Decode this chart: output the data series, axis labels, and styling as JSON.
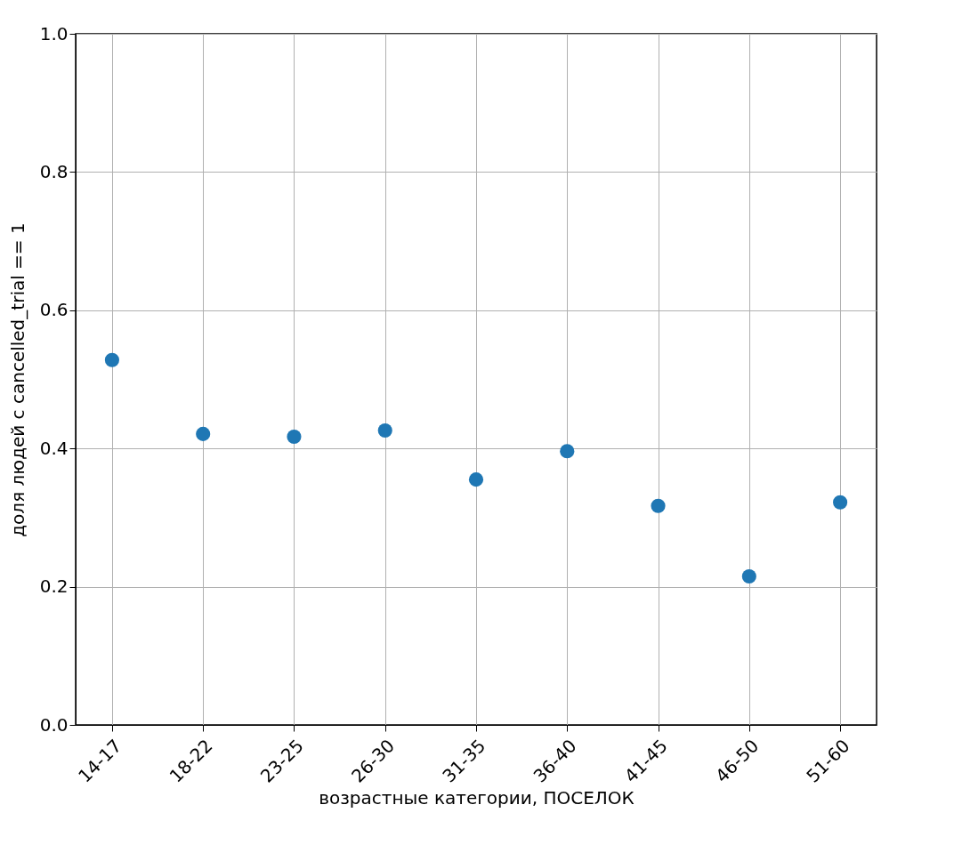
{
  "chart_data": {
    "type": "scatter",
    "xlabel": "возрастные категории, ПОСЕЛОК",
    "ylabel": "доля людей с cancelled_trial == 1",
    "categories": [
      "14-17",
      "18-22",
      "23-25",
      "26-30",
      "31-35",
      "36-40",
      "41-45",
      "46-50",
      "51-60"
    ],
    "series": [
      {
        "color": "#1f77b4",
        "values": [
          0.528,
          0.421,
          0.417,
          0.426,
          0.355,
          0.396,
          0.317,
          0.215,
          0.322
        ]
      }
    ],
    "ylim": [
      0,
      1
    ],
    "yticks": [
      {
        "value": 0,
        "label": "0.0"
      },
      {
        "value": 0.2,
        "label": "0.2"
      },
      {
        "value": 0.4,
        "label": "0.4"
      },
      {
        "value": 0.6,
        "label": "0.6"
      },
      {
        "value": 0.8,
        "label": "0.8"
      },
      {
        "value": 1,
        "label": "1.0"
      }
    ],
    "grid": true,
    "marker": "circle"
  }
}
